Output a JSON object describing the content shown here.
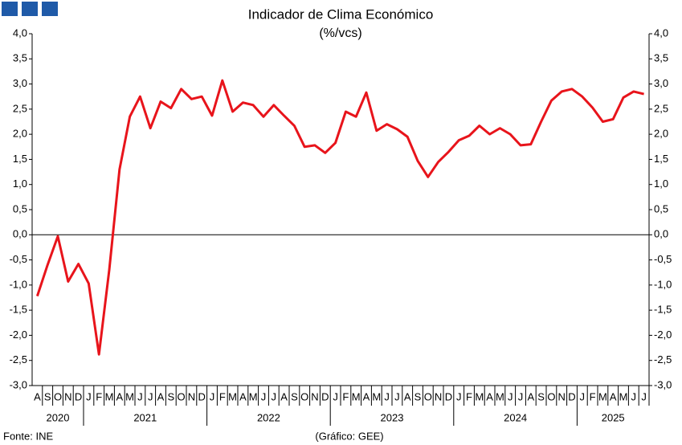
{
  "chart_data": {
    "type": "line",
    "title": "Indicador de Clima Económico",
    "subtitle": "(%/vcs)",
    "source": "Fonte: INE",
    "credit": "(Gráfico: GEE)",
    "categories": [
      "A",
      "S",
      "O",
      "N",
      "D",
      "J",
      "F",
      "M",
      "A",
      "M",
      "J",
      "J",
      "A",
      "S",
      "O",
      "N",
      "D",
      "J",
      "F",
      "M",
      "A",
      "M",
      "J",
      "J",
      "A",
      "S",
      "O",
      "N",
      "D",
      "J",
      "F",
      "M",
      "A",
      "M",
      "J",
      "J",
      "A",
      "S",
      "O",
      "N",
      "D",
      "J",
      "F",
      "M",
      "A",
      "M",
      "J",
      "J",
      "A",
      "S",
      "O",
      "N",
      "D",
      "J",
      "F",
      "M",
      "A",
      "M",
      "J",
      "J"
    ],
    "years": [
      "2020",
      "2021",
      "2022",
      "2023",
      "2024",
      "2025"
    ],
    "series": [
      {
        "name": "Indicador de Clima Económico",
        "color": "#e8141b",
        "values": [
          -1.22,
          -0.6,
          -0.03,
          -0.93,
          -0.58,
          -0.97,
          -2.38,
          -0.7,
          1.3,
          2.35,
          2.75,
          2.12,
          2.65,
          2.52,
          2.9,
          2.7,
          2.75,
          2.37,
          3.07,
          2.45,
          2.63,
          2.58,
          2.35,
          2.58,
          2.37,
          2.17,
          1.75,
          1.78,
          1.63,
          1.83,
          2.45,
          2.35,
          2.83,
          2.07,
          2.2,
          2.1,
          1.95,
          1.47,
          1.15,
          1.45,
          1.65,
          1.88,
          1.97,
          2.17,
          2.0,
          2.12,
          2.0,
          1.78,
          1.8,
          2.25,
          2.67,
          2.85,
          2.9,
          2.75,
          2.53,
          2.25,
          2.3,
          2.73,
          2.85,
          2.8
        ]
      }
    ],
    "ylim": [
      -3,
      4
    ],
    "yticks": [
      {
        "value": -3,
        "label": "-3,0"
      },
      {
        "value": -2.5,
        "label": "-2,5"
      },
      {
        "value": -2,
        "label": "-2,0"
      },
      {
        "value": -1.5,
        "label": "-1,5"
      },
      {
        "value": -1,
        "label": "-1,0"
      },
      {
        "value": -0.5,
        "label": "-0,5"
      },
      {
        "value": 0,
        "label": "0,0"
      },
      {
        "value": 0.5,
        "label": "0,5"
      },
      {
        "value": 1,
        "label": "1,0"
      },
      {
        "value": 1.5,
        "label": "1,5"
      },
      {
        "value": 2,
        "label": "2,0"
      },
      {
        "value": 2.5,
        "label": "2,5"
      },
      {
        "value": 3,
        "label": "3,0"
      },
      {
        "value": 3.5,
        "label": "3,5"
      },
      {
        "value": 4,
        "label": "4,0"
      }
    ],
    "mirror_y_axis": true,
    "zero_line": true,
    "grid": false
  }
}
